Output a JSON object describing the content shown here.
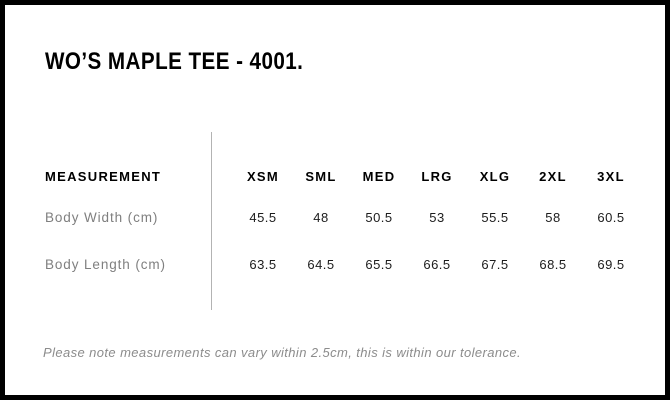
{
  "header": {
    "title": "WO’S MAPLE TEE - 4001."
  },
  "chart_data": {
    "type": "table",
    "title": "WO’S MAPLE TEE - 4001.",
    "columns": [
      "MEASUREMENT",
      "XSM",
      "SML",
      "MED",
      "LRG",
      "XLG",
      "2XL",
      "3XL"
    ],
    "rows": [
      {
        "label": "Body Width (cm)",
        "values": [
          "45.5",
          "48",
          "50.5",
          "53",
          "55.5",
          "58",
          "60.5"
        ]
      },
      {
        "label": "Body Length (cm)",
        "values": [
          "63.5",
          "64.5",
          "65.5",
          "66.5",
          "67.5",
          "68.5",
          "69.5"
        ]
      }
    ],
    "note": "Please note measurements can vary within 2.5cm, this is within our tolerance."
  },
  "colors": {
    "border": "#000000",
    "background": "#ffffff",
    "heading_text": "#000000",
    "value_text": "#1c1c1c",
    "muted_text": "#7f7f7f",
    "note_text": "#8c8c8c",
    "divider": "#b3b3b3"
  }
}
